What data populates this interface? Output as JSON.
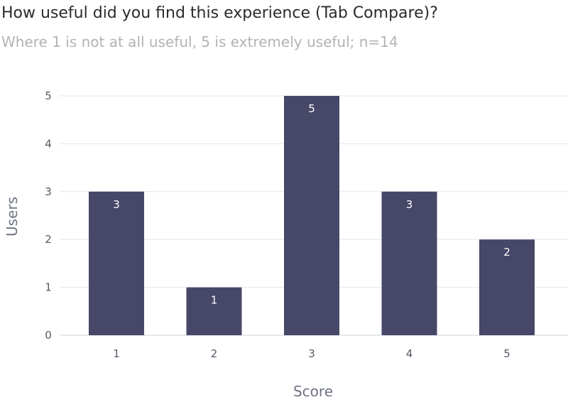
{
  "chart_data": {
    "type": "bar",
    "title": "How useful did you find this experience (Tab Compare)?",
    "subtitle": "Where 1 is not at all useful, 5 is extremely useful; n=14",
    "xlabel": "Score",
    "ylabel": "Users",
    "categories": [
      "1",
      "2",
      "3",
      "4",
      "5"
    ],
    "values": [
      3,
      1,
      5,
      3,
      2
    ],
    "ylim": [
      0,
      5
    ],
    "yticks": [
      0,
      1,
      2,
      3,
      4,
      5
    ],
    "grid": true,
    "bar_color": "#474768",
    "data_labels": true
  }
}
